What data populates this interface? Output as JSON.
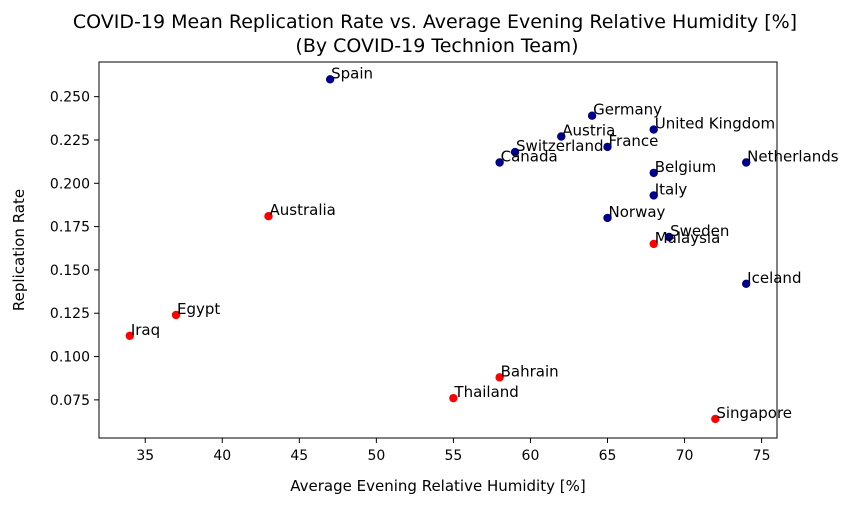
{
  "chart_data": {
    "type": "scatter",
    "title": "COVID-19 Mean Replication Rate vs. Average Evening Relative Humidity [%]",
    "subtitle": "(By COVID-19 Technion Team)",
    "xlabel": "Average Evening Relative Humidity [%]",
    "ylabel": "Replication Rate",
    "xlim": [
      32,
      76
    ],
    "ylim": [
      0.053,
      0.27
    ],
    "xticks": [
      35,
      40,
      45,
      50,
      55,
      60,
      65,
      70,
      75
    ],
    "yticks": [
      0.075,
      0.1,
      0.125,
      0.15,
      0.175,
      0.2,
      0.225,
      0.25
    ],
    "ytick_labels": [
      "0.075",
      "0.100",
      "0.125",
      "0.150",
      "0.175",
      "0.200",
      "0.225",
      "0.250"
    ],
    "grid": false,
    "colors": {
      "navy": "#00008b",
      "red": "#ff0000"
    },
    "points": [
      {
        "label": "Spain",
        "x": 47,
        "y": 0.26,
        "color": "navy"
      },
      {
        "label": "Germany",
        "x": 64,
        "y": 0.239,
        "color": "navy"
      },
      {
        "label": "United Kingdom",
        "x": 68,
        "y": 0.231,
        "color": "navy"
      },
      {
        "label": "Austria",
        "x": 62,
        "y": 0.227,
        "color": "navy"
      },
      {
        "label": "France",
        "x": 65,
        "y": 0.221,
        "color": "navy"
      },
      {
        "label": "Switzerland",
        "x": 59,
        "y": 0.218,
        "color": "navy"
      },
      {
        "label": "Canada",
        "x": 58,
        "y": 0.212,
        "color": "navy"
      },
      {
        "label": "Netherlands",
        "x": 74,
        "y": 0.212,
        "color": "navy"
      },
      {
        "label": "Belgium",
        "x": 68,
        "y": 0.206,
        "color": "navy"
      },
      {
        "label": "Italy",
        "x": 68,
        "y": 0.193,
        "color": "navy"
      },
      {
        "label": "Australia",
        "x": 43,
        "y": 0.181,
        "color": "red"
      },
      {
        "label": "Norway",
        "x": 65,
        "y": 0.18,
        "color": "navy"
      },
      {
        "label": "Sweden",
        "x": 69,
        "y": 0.169,
        "color": "navy"
      },
      {
        "label": "Malaysia",
        "x": 68,
        "y": 0.165,
        "color": "red"
      },
      {
        "label": "Iceland",
        "x": 74,
        "y": 0.142,
        "color": "navy"
      },
      {
        "label": "Egypt",
        "x": 37,
        "y": 0.124,
        "color": "red"
      },
      {
        "label": "Iraq",
        "x": 34,
        "y": 0.112,
        "color": "red"
      },
      {
        "label": "Bahrain",
        "x": 58,
        "y": 0.088,
        "color": "red"
      },
      {
        "label": "Thailand",
        "x": 55,
        "y": 0.076,
        "color": "red"
      },
      {
        "label": "Singapore",
        "x": 72,
        "y": 0.064,
        "color": "red"
      }
    ]
  }
}
